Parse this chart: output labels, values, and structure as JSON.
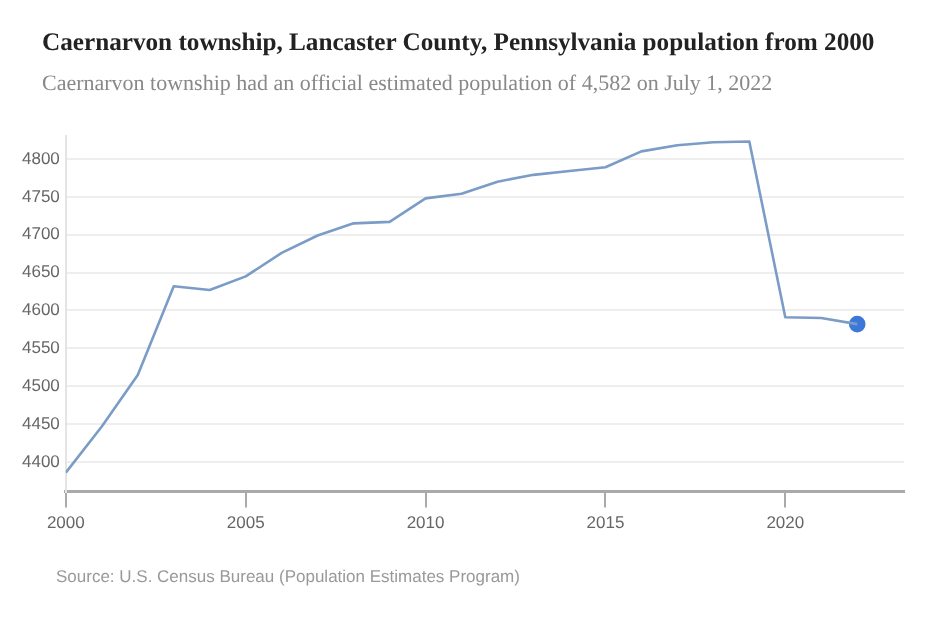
{
  "chart_data": {
    "type": "line",
    "title": "Caernarvon township, Lancaster County, Pennsylvania population from 2000",
    "subtitle": "Caernarvon township had an official estimated population of 4,582 on July 1, 2022",
    "x": [
      2000,
      2001,
      2002,
      2003,
      2004,
      2005,
      2006,
      2007,
      2008,
      2009,
      2010,
      2011,
      2012,
      2013,
      2014,
      2015,
      2016,
      2017,
      2018,
      2019,
      2020,
      2021,
      2022
    ],
    "series": [
      {
        "color": "#7a9cc6",
        "marker": "none",
        "values": [
          4386,
          4447,
          4515,
          4632,
          4627,
          4645,
          4676,
          4699,
          4715,
          4717,
          4748,
          4754,
          4770,
          4779,
          4784,
          4789,
          4810,
          4818,
          4822,
          4823,
          4591,
          4590,
          4582
        ]
      },
      {
        "type": "scatter",
        "color": "#3b78d8",
        "marker": "circle",
        "x": [
          2022
        ],
        "values": [
          4582
        ]
      }
    ],
    "xlim": [
      2000,
      2023.3
    ],
    "xticks": [
      2000,
      2005,
      2010,
      2015,
      2020
    ],
    "ylim": [
      4361,
      4830
    ],
    "yticks": [
      4400,
      4450,
      4500,
      4550,
      4600,
      4650,
      4700,
      4750,
      4800
    ],
    "grid": "y",
    "legend": false,
    "annotations": [
      "Source: U.S. Census Bureau (Population Estimates Program)"
    ]
  }
}
